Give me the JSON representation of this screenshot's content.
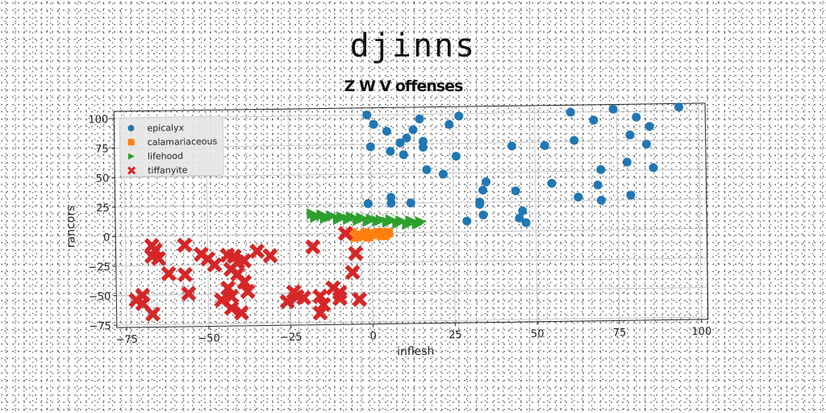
{
  "title": "djinns",
  "subtitle": "Z W V offenses",
  "chart_data": {
    "type": "scatter",
    "xlabel": "inflesh",
    "ylabel": "rancors",
    "xlim": [
      -78,
      102
    ],
    "ylim": [
      -77,
      106
    ],
    "xticks": [
      -75,
      -50,
      -25,
      0,
      25,
      50,
      75,
      100
    ],
    "yticks": [
      -75,
      -50,
      -25,
      0,
      25,
      50,
      75,
      100
    ],
    "xtick_labels": [
      "−75",
      "−50",
      "−25",
      "0",
      "25",
      "50",
      "75",
      "100"
    ],
    "ytick_labels": [
      "−75",
      "−50",
      "−25",
      "0",
      "25",
      "50",
      "75",
      "100"
    ],
    "grid": true,
    "legend_position": "top-left",
    "series": [
      {
        "name": "epicalyx",
        "marker": "circle",
        "color": "#1f77b4",
        "points": [
          [
            -1,
            100
          ],
          [
            1,
            92
          ],
          [
            5,
            86
          ],
          [
            13,
            87
          ],
          [
            15,
            96
          ],
          [
            24,
            91
          ],
          [
            27,
            98
          ],
          [
            0,
            73
          ],
          [
            6,
            69
          ],
          [
            10,
            66
          ],
          [
            9,
            76
          ],
          [
            11,
            80
          ],
          [
            16,
            72
          ],
          [
            16,
            77
          ],
          [
            26,
            64
          ],
          [
            17,
            53
          ],
          [
            22,
            49
          ],
          [
            -1,
            25
          ],
          [
            6,
            25
          ],
          [
            6,
            30
          ],
          [
            12,
            25
          ],
          [
            35,
            42
          ],
          [
            34,
            35
          ],
          [
            33,
            25
          ],
          [
            33,
            23
          ],
          [
            34,
            14
          ],
          [
            29,
            9
          ],
          [
            44,
            34
          ],
          [
            46,
            17
          ],
          [
            45,
            11
          ],
          [
            47,
            7
          ],
          [
            43,
            72
          ],
          [
            53,
            72
          ],
          [
            55,
            40
          ],
          [
            61,
            100
          ],
          [
            62,
            76
          ],
          [
            68,
            93
          ],
          [
            74,
            102
          ],
          [
            81,
            95
          ],
          [
            85,
            87
          ],
          [
            79,
            80
          ],
          [
            84,
            72
          ],
          [
            78,
            57
          ],
          [
            86,
            52
          ],
          [
            70,
            51
          ],
          [
            69,
            38
          ],
          [
            63,
            28
          ],
          [
            70,
            25
          ],
          [
            79,
            29
          ],
          [
            94,
            103
          ]
        ]
      },
      {
        "name": "calamariaceous",
        "marker": "square",
        "color": "#ff7f0e",
        "points": [
          [
            -6,
            0
          ],
          [
            -4,
            -2
          ],
          [
            -2,
            0
          ],
          [
            0,
            -1
          ],
          [
            2,
            0
          ],
          [
            4,
            -2
          ],
          [
            -5,
            -3
          ],
          [
            -1,
            -3
          ],
          [
            3,
            -2
          ],
          [
            5,
            0
          ]
        ]
      },
      {
        "name": "lifehood",
        "marker": "triangle-right",
        "color": "#2ca02c",
        "points": [
          [
            -18,
            17
          ],
          [
            -15,
            16
          ],
          [
            -12,
            15
          ],
          [
            -9,
            14
          ],
          [
            -6,
            14
          ],
          [
            -3,
            13
          ],
          [
            0,
            12
          ],
          [
            3,
            11
          ],
          [
            6,
            11
          ],
          [
            9,
            10
          ],
          [
            12,
            10
          ],
          [
            15,
            9
          ],
          [
            -17,
            14
          ],
          [
            -14,
            13
          ],
          [
            -10,
            12
          ],
          [
            -7,
            12
          ],
          [
            -4,
            11
          ],
          [
            -1,
            10
          ],
          [
            2,
            10
          ],
          [
            5,
            9
          ],
          [
            8,
            8
          ],
          [
            11,
            7
          ],
          [
            14,
            7
          ]
        ]
      },
      {
        "name": "tiffanyite",
        "marker": "x",
        "color": "#d62728",
        "points": [
          [
            -67,
            -8
          ],
          [
            -66,
            -12
          ],
          [
            -67,
            -17
          ],
          [
            -65,
            -19
          ],
          [
            -57,
            -8
          ],
          [
            -52,
            -16
          ],
          [
            -50,
            -20
          ],
          [
            -48,
            -25
          ],
          [
            -44,
            -17
          ],
          [
            -42,
            -18
          ],
          [
            -41,
            -23
          ],
          [
            -39,
            -22
          ],
          [
            -43,
            -29
          ],
          [
            -41,
            -33
          ],
          [
            -39,
            -40
          ],
          [
            -44,
            -45
          ],
          [
            -43,
            -52
          ],
          [
            -46,
            -55
          ],
          [
            -38,
            -48
          ],
          [
            -43,
            -62
          ],
          [
            -40,
            -66
          ],
          [
            -35,
            -14
          ],
          [
            -31,
            -18
          ],
          [
            -24,
            -49
          ],
          [
            -23,
            -53
          ],
          [
            -21,
            -54
          ],
          [
            -26,
            -57
          ],
          [
            -18,
            -11
          ],
          [
            -16,
            -53
          ],
          [
            -15,
            -60
          ],
          [
            -16,
            -67
          ],
          [
            -12,
            -46
          ],
          [
            -10,
            -50
          ],
          [
            -10,
            -55
          ],
          [
            -5,
            -17
          ],
          [
            -6,
            -33
          ],
          [
            -4,
            -56
          ],
          [
            -8,
            0
          ],
          [
            -70,
            -50
          ],
          [
            -72,
            -54
          ],
          [
            -70,
            -57
          ],
          [
            -67,
            -66
          ],
          [
            -57,
            -33
          ],
          [
            -56,
            -49
          ],
          [
            -62,
            -32
          ]
        ]
      }
    ]
  }
}
